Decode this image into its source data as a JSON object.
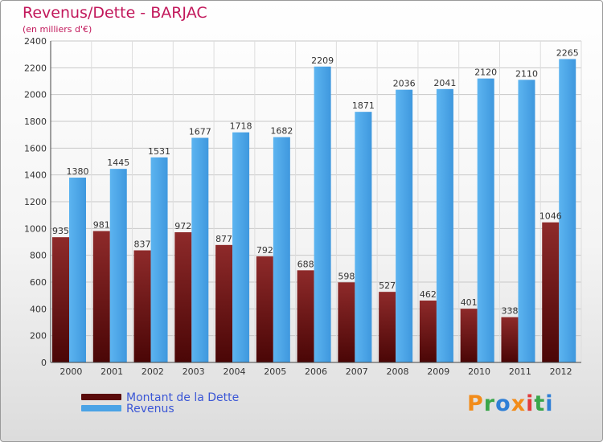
{
  "title": "Revenus/Dette - BARJAC",
  "subtitle": "(en milliers d'€)",
  "colors": {
    "dette": "#7a1a1a",
    "revenus": "#4aa3e6",
    "title": "#c2185b",
    "legend_text": "#3a56d6"
  },
  "legend": [
    {
      "label": "Montant de la Dette",
      "color": "#5a0b0b"
    },
    {
      "label": "Revenus",
      "color": "#4aa3e6"
    }
  ],
  "logo": {
    "text": "Proxiti"
  },
  "chart_data": {
    "type": "bar",
    "categories": [
      "2000",
      "2001",
      "2002",
      "2003",
      "2004",
      "2005",
      "2006",
      "2007",
      "2008",
      "2009",
      "2010",
      "2011",
      "2012"
    ],
    "series": [
      {
        "name": "Montant de la Dette",
        "values": [
          935,
          981,
          837,
          972,
          877,
          792,
          688,
          598,
          527,
          462,
          401,
          338,
          1046
        ]
      },
      {
        "name": "Revenus",
        "values": [
          1380,
          1445,
          1531,
          1677,
          1718,
          1682,
          2209,
          1871,
          2036,
          2041,
          2120,
          2110,
          2265
        ]
      }
    ],
    "ylim": [
      0,
      2400
    ],
    "yticks": [
      0,
      200,
      400,
      600,
      800,
      1000,
      1200,
      1400,
      1600,
      1800,
      2000,
      2200,
      2400
    ],
    "grid": true,
    "legend_position": "bottom-left"
  }
}
